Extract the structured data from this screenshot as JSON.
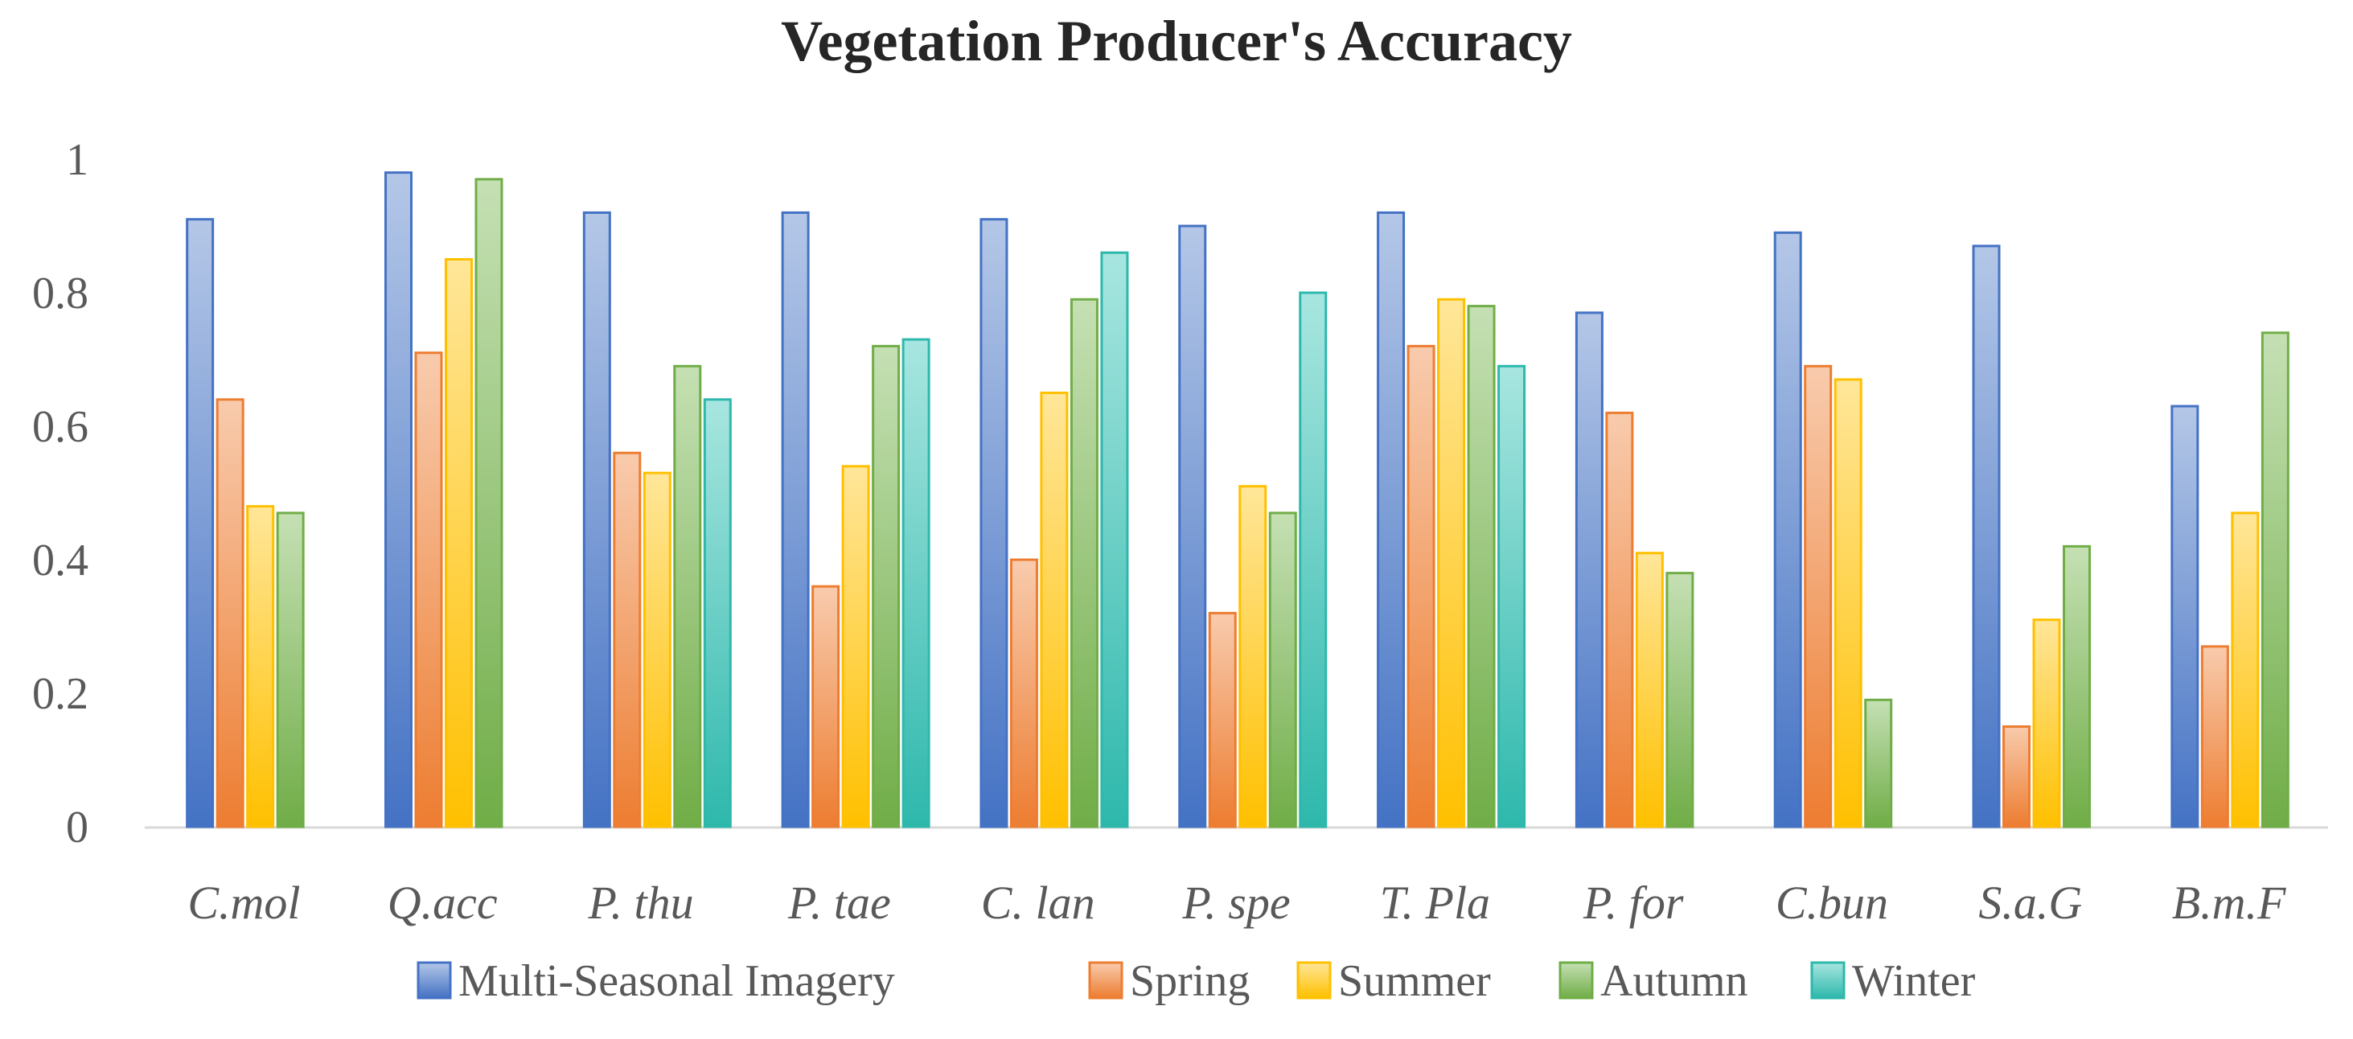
{
  "chart_data": {
    "type": "bar",
    "title": "Vegetation Producer's Accuracy",
    "xlabel": "",
    "ylabel": "",
    "ylim": [
      0,
      1
    ],
    "yticks": [
      "0",
      "0.2",
      "0.4",
      "0.6",
      "0.8",
      "1"
    ],
    "ytick_values": [
      0,
      0.2,
      0.4,
      0.6,
      0.8,
      1
    ],
    "grid": false,
    "legend_position": "bottom",
    "categories": [
      "C.mol",
      "Q.acc",
      "P. thu",
      "P. tae",
      "C. lan",
      "P. spe",
      "T. Pla",
      "P. for",
      "C.bun",
      "S.a.G",
      "B.m.F"
    ],
    "series": [
      {
        "name": "Multi-Seasonal Imagery",
        "color": "#4472C4",
        "light": "#B4C7E7",
        "values": [
          0.91,
          0.98,
          0.92,
          0.92,
          0.91,
          0.9,
          0.92,
          0.77,
          0.89,
          0.87,
          0.63
        ]
      },
      {
        "name": "Spring",
        "color": "#ED7D31",
        "light": "#F8CBAD",
        "values": [
          0.64,
          0.71,
          0.56,
          0.36,
          0.4,
          0.32,
          0.72,
          0.62,
          0.69,
          0.15,
          0.27
        ]
      },
      {
        "name": "Summer",
        "color": "#FFC000",
        "light": "#FFE699",
        "values": [
          0.48,
          0.85,
          0.53,
          0.54,
          0.65,
          0.51,
          0.79,
          0.41,
          0.67,
          0.31,
          0.47
        ]
      },
      {
        "name": "Autumn",
        "color": "#70AD47",
        "light": "#C5E0B4",
        "values": [
          0.47,
          0.97,
          0.69,
          0.72,
          0.79,
          0.47,
          0.78,
          0.38,
          0.19,
          0.42,
          0.74
        ]
      },
      {
        "name": "Winter",
        "color": "#2EB8AC",
        "light": "#A8E6E0",
        "values": [
          null,
          null,
          0.64,
          0.73,
          0.86,
          0.8,
          0.69,
          null,
          null,
          null,
          null
        ]
      }
    ]
  }
}
